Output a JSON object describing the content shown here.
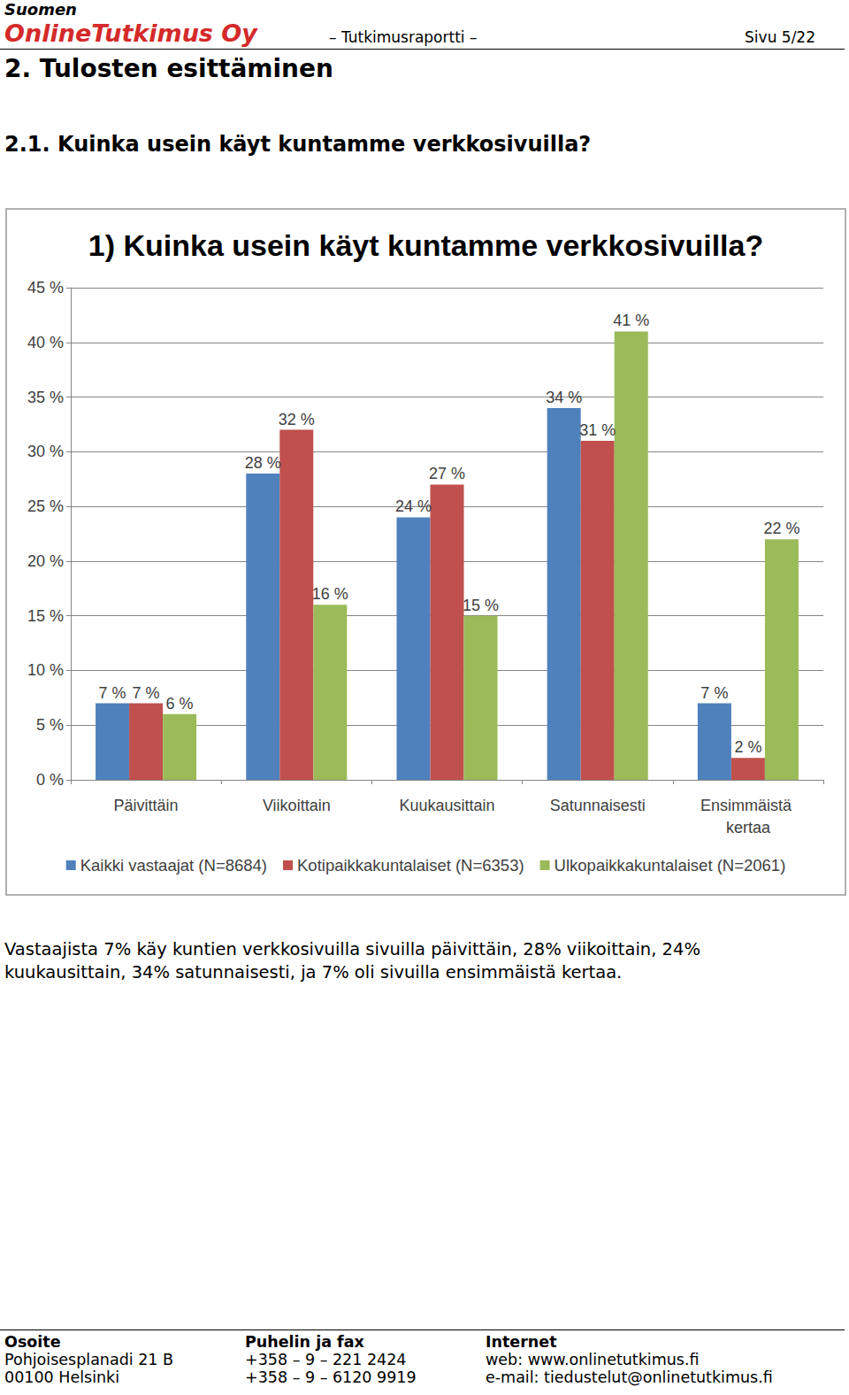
{
  "header": {
    "company_line1": "Suomen",
    "company_line2": "OnlineTutkimus Oy",
    "report": "– Tutkimusraportti –",
    "page": "Sivu 5/22"
  },
  "section_title": "2. Tulosten esittäminen",
  "subsection_title": "2.1. Kuinka usein käyt kuntamme verkkosivuilla?",
  "chart_data": {
    "type": "bar",
    "title": "1) Kuinka usein käyt kuntamme verkkosivuilla?",
    "categories": [
      "Päivittäin",
      "Viikoittain",
      "Kuukausittain",
      "Satunnaisesti",
      "Ensimmäistä kertaa"
    ],
    "series": [
      {
        "name": "Kaikki vastaajat (N=8684)",
        "color": "#4f81bd",
        "values": [
          7,
          28,
          24,
          34,
          7
        ],
        "value_labels": [
          "7 %",
          "28 %",
          "24 %",
          "34 %",
          "7 %"
        ]
      },
      {
        "name": "Kotipaikkakuntalaiset (N=6353)",
        "color": "#c0504d",
        "values": [
          7,
          32,
          27,
          31,
          2
        ],
        "value_labels": [
          "7 %",
          "32 %",
          "27 %",
          "31 %",
          "2 %"
        ]
      },
      {
        "name": "Ulkopaikkakuntalaiset (N=2061)",
        "color": "#9bbb59",
        "values": [
          6,
          16,
          15,
          41,
          22
        ],
        "value_labels": [
          "6 %",
          "16 %",
          "15 %",
          "41 %",
          "22 %"
        ]
      }
    ],
    "ylim": [
      0,
      45
    ],
    "yticks": [
      {
        "value": 0,
        "label": "0 %"
      },
      {
        "value": 5,
        "label": "5 %"
      },
      {
        "value": 10,
        "label": "10 %"
      },
      {
        "value": 15,
        "label": "15 %"
      },
      {
        "value": 20,
        "label": "20 %"
      },
      {
        "value": 25,
        "label": "25 %"
      },
      {
        "value": 30,
        "label": "30 %"
      },
      {
        "value": 35,
        "label": "35 %"
      },
      {
        "value": 40,
        "label": "40 %"
      },
      {
        "value": 45,
        "label": "45 %"
      }
    ],
    "grid": true,
    "legend": "bottom",
    "data_labels": true
  },
  "paragraph": [
    "Vastaajista 7% käy kuntien verkkosivuilla sivuilla päivittäin, 28% viikoittain, 24%",
    "kuukausittain, 34% satunnaisesti, ja 7% oli sivuilla ensimmäistä kertaa."
  ],
  "footer": {
    "columns": [
      {
        "heading": "Osoite",
        "lines": [
          "Pohjoisesplanadi 21 B",
          "00100 Helsinki"
        ]
      },
      {
        "heading": "Puhelin ja fax",
        "lines": [
          "+358 – 9 – 221 2424",
          "+358 – 9 – 6120 9919"
        ]
      },
      {
        "heading": "Internet",
        "lines": [
          "web: www.onlinetutkimus.fi",
          "e-mail: tiedustelut@onlinetutkimus.fi"
        ]
      }
    ]
  }
}
